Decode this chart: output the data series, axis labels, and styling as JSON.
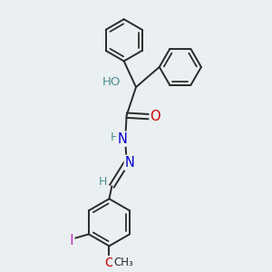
{
  "bg_color": "#eaeff1",
  "bond_color": "#2a2a2a",
  "bond_width": 1.4,
  "atom_colors": {
    "O": "#cc0000",
    "N": "#0000cc",
    "I": "#bb33bb",
    "C": "#2a2a2a",
    "H_teal": "#4a9090"
  },
  "font_size": 9,
  "figsize": [
    3.0,
    3.0
  ],
  "dpi": 100,
  "xlim": [
    0,
    10
  ],
  "ylim": [
    0,
    10
  ]
}
